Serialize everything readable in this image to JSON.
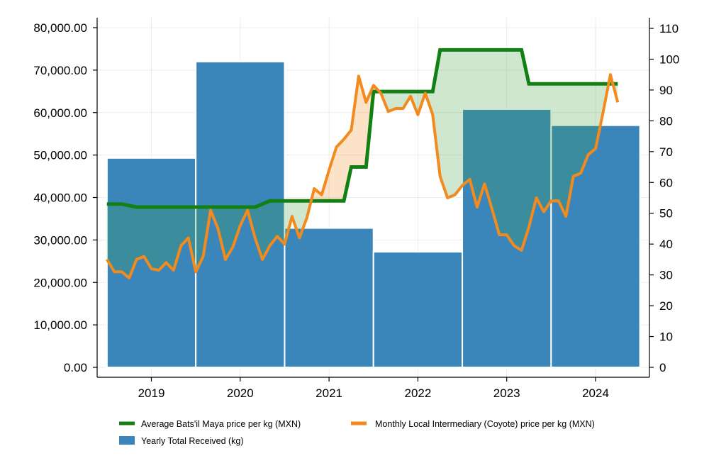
{
  "chart_data": {
    "type": "bar+line",
    "title": "",
    "grid": true,
    "legend_position": "bottom",
    "x_ticks": [
      "2019",
      "2020",
      "2021",
      "2022",
      "2023",
      "2024"
    ],
    "left_axis": {
      "label": "",
      "ylim": [
        0,
        80000
      ],
      "ticks": [
        "0.00",
        "10,000.00",
        "20,000.00",
        "30,000.00",
        "40,000.00",
        "50,000.00",
        "60,000.00",
        "70,000.00",
        "80,000.00"
      ]
    },
    "right_axis": {
      "label": "",
      "ylim": [
        0,
        110
      ],
      "ticks": [
        "0",
        "10",
        "20",
        "30",
        "40",
        "50",
        "60",
        "70",
        "80",
        "90",
        "100",
        "110"
      ]
    },
    "series": [
      {
        "name": "Yearly Total Received (kg)",
        "kind": "bar",
        "axis": "left",
        "color": "#3a86bb",
        "bars": [
          {
            "period": "2018-07 to 2019-06",
            "value": 49300
          },
          {
            "period": "2019-07 to 2020-06",
            "value": 72000
          },
          {
            "period": "2020-07 to 2021-06",
            "value": 32800
          },
          {
            "period": "2021-07 to 2022-06",
            "value": 27200
          },
          {
            "period": "2022-07 to 2023-06",
            "value": 60800
          },
          {
            "period": "2023-07 to 2024-06",
            "value": 57000
          }
        ]
      },
      {
        "name": "Average Bats'il Maya price per kg (MXN)",
        "kind": "step-line",
        "axis": "right",
        "color": "#138013",
        "points": [
          [
            "2018-07",
            53
          ],
          [
            "2018-09",
            53
          ],
          [
            "2018-10",
            52.5
          ],
          [
            "2018-11",
            52
          ],
          [
            "2020-03",
            52
          ],
          [
            "2020-05",
            54
          ],
          [
            "2021-03",
            54
          ],
          [
            "2021-04",
            65
          ],
          [
            "2021-06",
            65
          ],
          [
            "2021-07",
            89.5
          ],
          [
            "2022-03",
            89.5
          ],
          [
            "2022-04",
            103
          ],
          [
            "2023-03",
            103
          ],
          [
            "2023-04",
            92
          ],
          [
            "2024-04",
            92
          ]
        ]
      },
      {
        "name": "Monthly Local Intermediary (Coyote) price per kg (MXN)",
        "kind": "line",
        "axis": "right",
        "color": "#f28a1e",
        "points": [
          [
            "2018-07",
            35
          ],
          [
            "2018-08",
            31
          ],
          [
            "2018-09",
            31
          ],
          [
            "2018-10",
            29
          ],
          [
            "2018-11",
            35
          ],
          [
            "2018-12",
            36
          ],
          [
            "2019-01",
            32
          ],
          [
            "2019-02",
            31.5
          ],
          [
            "2019-03",
            34
          ],
          [
            "2019-04",
            31.5
          ],
          [
            "2019-05",
            39.5
          ],
          [
            "2019-06",
            42
          ],
          [
            "2019-07",
            31
          ],
          [
            "2019-08",
            36
          ],
          [
            "2019-09",
            51
          ],
          [
            "2019-10",
            45
          ],
          [
            "2019-11",
            35
          ],
          [
            "2019-12",
            39
          ],
          [
            "2020-01",
            46
          ],
          [
            "2020-02",
            51
          ],
          [
            "2020-03",
            42
          ],
          [
            "2020-04",
            35
          ],
          [
            "2020-05",
            39.5
          ],
          [
            "2020-06",
            42.5
          ],
          [
            "2020-07",
            40
          ],
          [
            "2020-08",
            49
          ],
          [
            "2020-09",
            42
          ],
          [
            "2020-10",
            48.5
          ],
          [
            "2020-11",
            58
          ],
          [
            "2020-12",
            56
          ],
          [
            "2021-01",
            64
          ],
          [
            "2021-02",
            71.5
          ],
          [
            "2021-03",
            74
          ],
          [
            "2021-04",
            77
          ],
          [
            "2021-05",
            94.5
          ],
          [
            "2021-06",
            86
          ],
          [
            "2021-07",
            91.5
          ],
          [
            "2021-08",
            89
          ],
          [
            "2021-09",
            83
          ],
          [
            "2021-10",
            84
          ],
          [
            "2021-11",
            84
          ],
          [
            "2021-12",
            88
          ],
          [
            "2022-01",
            82
          ],
          [
            "2022-02",
            89
          ],
          [
            "2022-03",
            82
          ],
          [
            "2022-04",
            62
          ],
          [
            "2022-05",
            55
          ],
          [
            "2022-06",
            56
          ],
          [
            "2022-07",
            59
          ],
          [
            "2022-08",
            61
          ],
          [
            "2022-09",
            52
          ],
          [
            "2022-10",
            59.5
          ],
          [
            "2022-11",
            51.5
          ],
          [
            "2022-12",
            43
          ],
          [
            "2023-01",
            43
          ],
          [
            "2023-02",
            39.5
          ],
          [
            "2023-03",
            38
          ],
          [
            "2023-04",
            45.5
          ],
          [
            "2023-05",
            55
          ],
          [
            "2023-06",
            50.5
          ],
          [
            "2023-07",
            54
          ],
          [
            "2023-08",
            54
          ],
          [
            "2023-09",
            49
          ],
          [
            "2023-10",
            62
          ],
          [
            "2023-11",
            63
          ],
          [
            "2023-12",
            69
          ],
          [
            "2024-01",
            71
          ],
          [
            "2024-02",
            82.5
          ],
          [
            "2024-03",
            95
          ],
          [
            "2024-04",
            86
          ]
        ]
      }
    ]
  },
  "legend": [
    {
      "label": "Average Bats'il Maya price per kg (MXN)",
      "color": "#138013"
    },
    {
      "label": "Monthly Local Intermediary (Coyote) price per kg (MXN)",
      "color": "#f28a1e"
    },
    {
      "label": "Yearly Total Received (kg)",
      "color": "#3a86bb"
    }
  ]
}
